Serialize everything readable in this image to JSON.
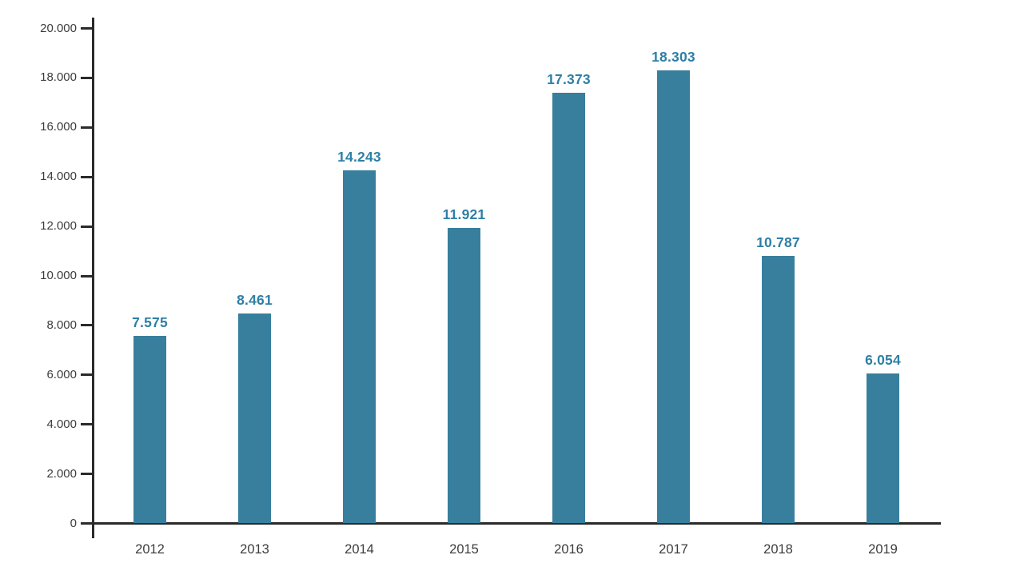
{
  "chart_data": {
    "type": "bar",
    "title": "",
    "xlabel": "",
    "ylabel": "",
    "categories": [
      "2012",
      "2013",
      "2014",
      "2015",
      "2016",
      "2017",
      "2018",
      "2019"
    ],
    "values": [
      7575,
      8461,
      14243,
      11921,
      17373,
      18303,
      10787,
      6054
    ],
    "value_labels": [
      "7.575",
      "8.461",
      "14.243",
      "11.921",
      "17.373",
      "18.303",
      "10.787",
      "6.054"
    ],
    "ylim": [
      0,
      20000
    ],
    "ytick_values": [
      0,
      2000,
      4000,
      6000,
      8000,
      10000,
      12000,
      14000,
      16000,
      18000,
      20000
    ],
    "ytick_labels": [
      "0",
      "2.000",
      "4.000",
      "6.000",
      "8.000",
      "10.000",
      "12.000",
      "14.000",
      "16.000",
      "18.000",
      "20.000"
    ],
    "grid": false,
    "legend": "none",
    "colors": {
      "bar": "#377f9d",
      "value_label": "#2e7fa6",
      "axis": "#2a2a2a",
      "tick_label": "#3c3c3c",
      "background": "#ffffff"
    }
  }
}
